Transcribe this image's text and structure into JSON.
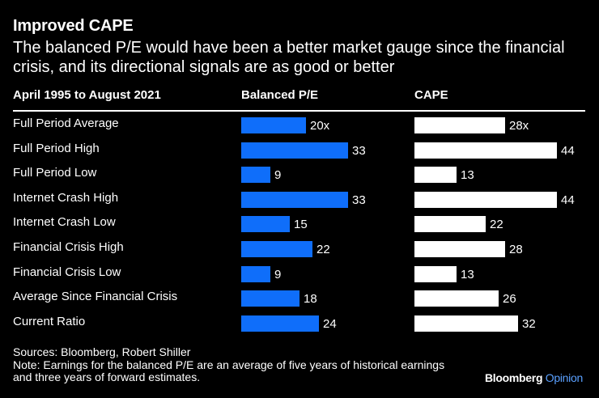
{
  "header": {
    "title": "Improved CAPE",
    "subtitle": "The balanced P/E would have been a better market gauge since the financial crisis, and its directional signals are as good or better"
  },
  "columns": {
    "period": "April 1995 to August 2021",
    "balanced": "Balanced P/E",
    "cape": "CAPE"
  },
  "footer": {
    "sources": "Sources: Bloomberg, Robert Shiller",
    "note": "Note: Earnings for the balanced P/E are an average of five years of historical earnings and three years of forward estimates.",
    "brand_main": "Bloomberg",
    "brand_sub": "Opinion"
  },
  "colors": {
    "balanced": "#0f6efa",
    "cape": "#ffffff",
    "background": "#000000"
  },
  "chart_data": {
    "type": "bar",
    "orientation": "horizontal",
    "categories": [
      "Full Period Average",
      "Full Period High",
      "Full Period Low",
      "Internet Crash High",
      "Internet Crash Low",
      "Financial Crisis High",
      "Financial Crisis Low",
      "Average Since Financial Crisis",
      "Current Ratio"
    ],
    "series": [
      {
        "name": "Balanced P/E",
        "values": [
          20,
          33,
          9,
          33,
          15,
          22,
          9,
          18,
          24
        ],
        "labels": [
          "20x",
          "33",
          "9",
          "33",
          "15",
          "22",
          "9",
          "18",
          "24"
        ]
      },
      {
        "name": "CAPE",
        "values": [
          28,
          44,
          13,
          44,
          22,
          28,
          13,
          26,
          32
        ],
        "labels": [
          "28x",
          "44",
          "13",
          "44",
          "22",
          "28",
          "13",
          "26",
          "32"
        ]
      }
    ],
    "title": "Improved CAPE",
    "xlabel": "",
    "ylabel": ""
  }
}
